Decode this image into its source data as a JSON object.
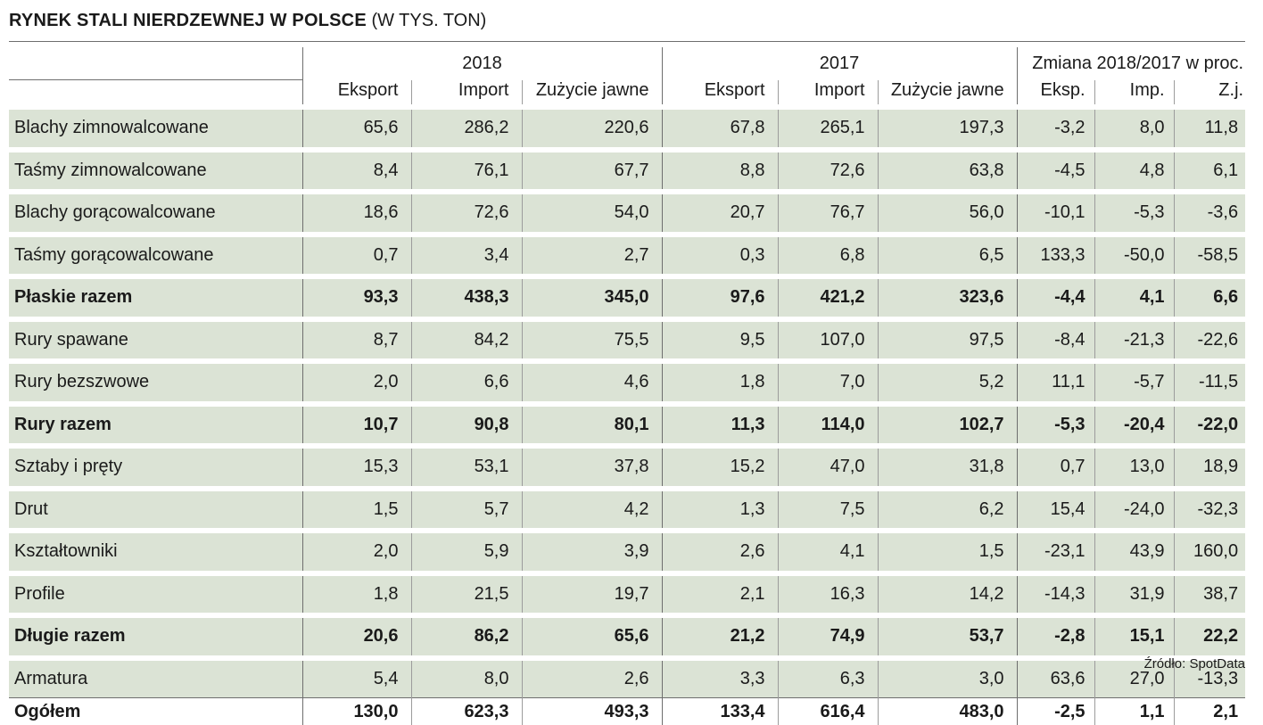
{
  "title": "RYNEK STALI NIERDZEWNEJ W POLSCE",
  "subtitle": "(W TYS. TON)",
  "source": "Źródło: SpotData",
  "chart_data": {
    "type": "table",
    "title": "RYNEK STALI NIERDZEWNEJ W POLSCE",
    "subtitle": "(W TYS. TON)",
    "groups": [
      "2018",
      "2017",
      "Zmiana 2018/2017 w proc."
    ],
    "columns": [
      "Eksport",
      "Import",
      "Zużycie jawne",
      "Eksport",
      "Import",
      "Zużycie jawne",
      "Eksp.",
      "Imp.",
      "Z.j."
    ],
    "rows": [
      {
        "label": "Blachy zimnowalcowane",
        "values": [
          "65,6",
          "286,2",
          "220,6",
          "67,8",
          "265,1",
          "197,3",
          "-3,2",
          "8,0",
          "11,8"
        ]
      },
      {
        "label": "Taśmy zimnowalcowane",
        "values": [
          "8,4",
          "76,1",
          "67,7",
          "8,8",
          "72,6",
          "63,8",
          "-4,5",
          "4,8",
          "6,1"
        ]
      },
      {
        "label": "Blachy gorącowalcowane",
        "values": [
          "18,6",
          "72,6",
          "54,0",
          "20,7",
          "76,7",
          "56,0",
          "-10,1",
          "-5,3",
          "-3,6"
        ]
      },
      {
        "label": "Taśmy gorącowalcowane",
        "values": [
          "0,7",
          "3,4",
          "2,7",
          "0,3",
          "6,8",
          "6,5",
          "133,3",
          "-50,0",
          "-58,5"
        ]
      },
      {
        "label": "Płaskie razem",
        "values": [
          "93,3",
          "438,3",
          "345,0",
          "97,6",
          "421,2",
          "323,6",
          "-4,4",
          "4,1",
          "6,6"
        ]
      },
      {
        "label": "Rury spawane",
        "values": [
          "8,7",
          "84,2",
          "75,5",
          "9,5",
          "107,0",
          "97,5",
          "-8,4",
          "-21,3",
          "-22,6"
        ]
      },
      {
        "label": "Rury bezszwowe",
        "values": [
          "2,0",
          "6,6",
          "4,6",
          "1,8",
          "7,0",
          "5,2",
          "11,1",
          "-5,7",
          "-11,5"
        ]
      },
      {
        "label": "Rury razem",
        "values": [
          "10,7",
          "90,8",
          "80,1",
          "11,3",
          "114,0",
          "102,7",
          "-5,3",
          "-20,4",
          "-22,0"
        ]
      },
      {
        "label": "Sztaby i pręty",
        "values": [
          "15,3",
          "53,1",
          "37,8",
          "15,2",
          "47,0",
          "31,8",
          "0,7",
          "13,0",
          "18,9"
        ]
      },
      {
        "label": "Drut",
        "values": [
          "1,5",
          "5,7",
          "4,2",
          "1,3",
          "7,5",
          "6,2",
          "15,4",
          "-24,0",
          "-32,3"
        ]
      },
      {
        "label": "Kształtowniki",
        "values": [
          "2,0",
          "5,9",
          "3,9",
          "2,6",
          "4,1",
          "1,5",
          "-23,1",
          "43,9",
          "160,0"
        ]
      },
      {
        "label": "Profile",
        "values": [
          "1,8",
          "21,5",
          "19,7",
          "2,1",
          "16,3",
          "14,2",
          "-14,3",
          "31,9",
          "38,7"
        ]
      },
      {
        "label": "Długie razem",
        "values": [
          "20,6",
          "86,2",
          "65,6",
          "21,2",
          "74,9",
          "53,7",
          "-2,8",
          "15,1",
          "22,2"
        ]
      },
      {
        "label": "Armatura",
        "values": [
          "5,4",
          "8,0",
          "2,6",
          "3,3",
          "6,3",
          "3,0",
          "63,6",
          "27,0",
          "-13,3"
        ]
      }
    ],
    "total": {
      "label": "Ogółem",
      "values": [
        "130,0",
        "623,3",
        "493,3",
        "133,4",
        "616,4",
        "483,0",
        "-2,5",
        "1,1",
        "2,1"
      ]
    },
    "bold_rows": [
      "Płaskie razem",
      "Rury razem",
      "Długie razem",
      "Ogółem"
    ],
    "row_shading": "#dbe3d5"
  }
}
